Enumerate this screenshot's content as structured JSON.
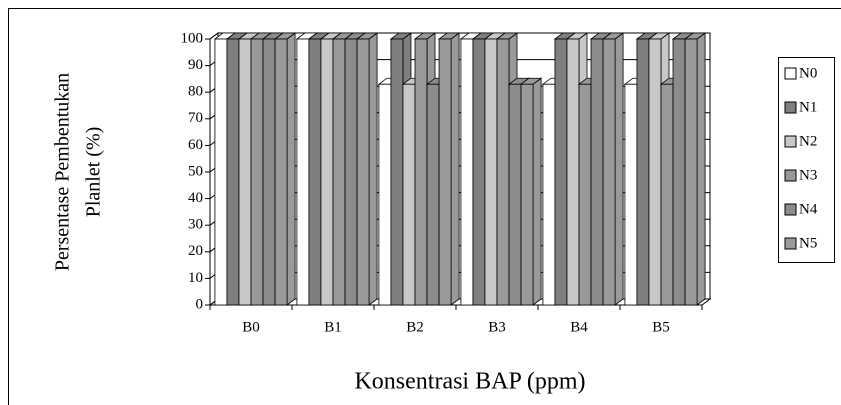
{
  "chart_data": {
    "type": "bar",
    "ylabel": [
      "Persentase Pembentukan",
      "Planlet (%)"
    ],
    "xlabel": "Konsentrasi BAP (ppm)",
    "categories": [
      "B0",
      "B1",
      "B2",
      "B3",
      "B4",
      "B5"
    ],
    "series": [
      {
        "name": "N0",
        "color": "#ffffff",
        "values": [
          100,
          100,
          83,
          100,
          83,
          83
        ]
      },
      {
        "name": "N1",
        "color": "#7f7f7f",
        "values": [
          100,
          100,
          100,
          100,
          100,
          100
        ]
      },
      {
        "name": "N2",
        "color": "#c8c8c8",
        "values": [
          100,
          100,
          83,
          100,
          100,
          100
        ]
      },
      {
        "name": "N3",
        "color": "#999999",
        "values": [
          100,
          100,
          100,
          100,
          83,
          83
        ]
      },
      {
        "name": "N4",
        "color": "#8c8c8c",
        "values": [
          100,
          100,
          83,
          83,
          100,
          100
        ]
      },
      {
        "name": "N5",
        "color": "#9a9a9a",
        "values": [
          100,
          100,
          100,
          83,
          100,
          100
        ]
      }
    ],
    "ylim": [
      0,
      100
    ],
    "yticks": [
      0,
      10,
      20,
      30,
      40,
      50,
      60,
      70,
      80,
      90,
      100
    ],
    "grid": true,
    "legend": "right"
  }
}
